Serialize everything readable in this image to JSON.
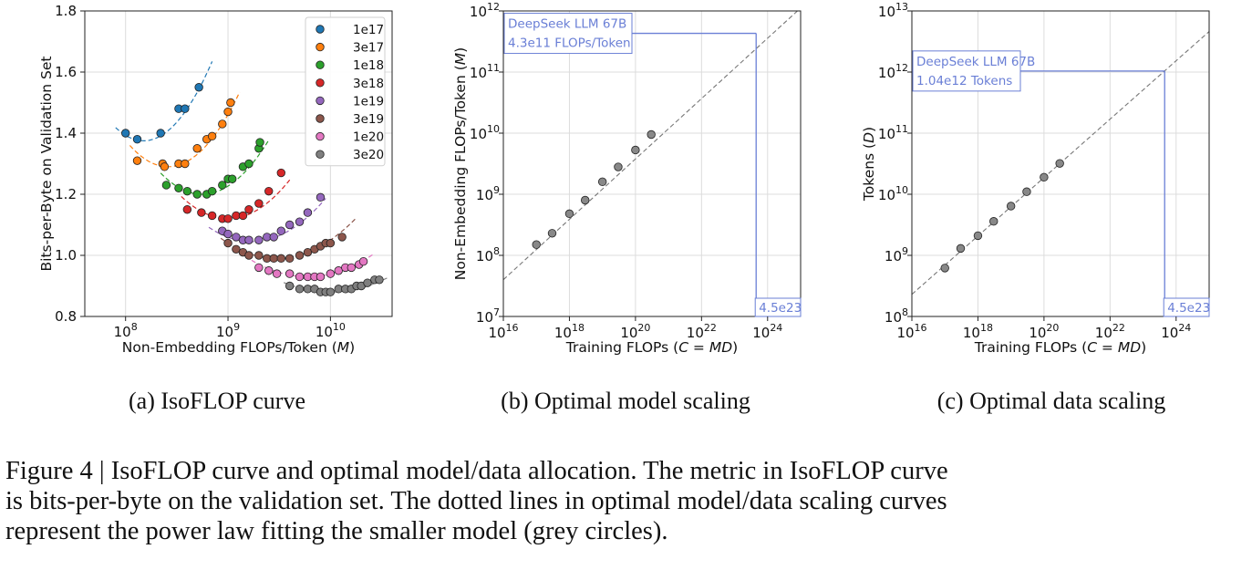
{
  "caption": {
    "lines": [
      "Figure 4 | IsoFLOP curve and optimal model/data allocation. The metric in IsoFLOP curve",
      "is bits-per-byte on the validation set. The dotted lines in optimal model/data scaling curves",
      "represent the power law fitting the smaller model (grey circles)."
    ]
  },
  "chart_data": [
    {
      "type": "scatter",
      "subcaption": "(a)  IsoFLOP curve",
      "xlabel": "Non-Embedding FLOPs/Token (M)",
      "ylabel": "Bits-per-Byte on Validation Set",
      "xscale": "log",
      "xlim": [
        40000000.0,
        40000000000.0
      ],
      "ylim": [
        0.8,
        1.8
      ],
      "x_ticks": [
        {
          "value": 100000000.0,
          "base": "10",
          "exp": "8"
        },
        {
          "value": 1000000000.0,
          "base": "10",
          "exp": "9"
        },
        {
          "value": 10000000000.0,
          "base": "10",
          "exp": "10"
        }
      ],
      "y_ticks": [
        {
          "value": 0.8,
          "label": "0.8"
        },
        {
          "value": 1.0,
          "label": "1.0"
        },
        {
          "value": 1.2,
          "label": "1.2"
        },
        {
          "value": 1.4,
          "label": "1.4"
        },
        {
          "value": 1.6,
          "label": "1.6"
        },
        {
          "value": 1.8,
          "label": "1.8"
        }
      ],
      "grid": true,
      "legend_position": "top-right",
      "series": [
        {
          "name": "1e17",
          "color": "#1f77b4",
          "x": [
            100000000.0,
            130000000.0,
            220000000.0,
            330000000.0,
            380000000.0,
            520000000.0
          ],
          "y": [
            1.4,
            1.38,
            1.4,
            1.48,
            1.48,
            1.55
          ],
          "fit": {
            "xmin": 80000000.0,
            "xmax": 700000000.0,
            "xmin_opt": 150000000.0,
            "ymin": 1.375,
            "k": 0.58
          }
        },
        {
          "name": "3e17",
          "color": "#ff7f0e",
          "x": [
            130000000.0,
            230000000.0,
            240000000.0,
            330000000.0,
            380000000.0,
            500000000.0,
            620000000.0,
            700000000.0,
            880000000.0,
            1000000000.0,
            1060000000.0
          ],
          "y": [
            1.31,
            1.3,
            1.29,
            1.3,
            1.3,
            1.35,
            1.38,
            1.39,
            1.43,
            1.47,
            1.5
          ],
          "fit": {
            "xmin": 110000000.0,
            "xmax": 1300000000.0,
            "xmin_opt": 260000000.0,
            "ymin": 1.29,
            "k": 0.5
          }
        },
        {
          "name": "1e18",
          "color": "#2ca02c",
          "x": [
            250000000.0,
            330000000.0,
            400000000.0,
            500000000.0,
            620000000.0,
            700000000.0,
            880000000.0,
            1000000000.0,
            1100000000.0,
            1400000000.0,
            1600000000.0,
            2000000000.0,
            2050000000.0
          ],
          "y": [
            1.23,
            1.22,
            1.21,
            1.2,
            1.2,
            1.21,
            1.23,
            1.25,
            1.25,
            1.29,
            1.3,
            1.35,
            1.37
          ],
          "fit": {
            "xmin": 220000000.0,
            "xmax": 2500000000.0,
            "xmin_opt": 560000000.0,
            "ymin": 1.2,
            "k": 0.42
          }
        },
        {
          "name": "3e18",
          "color": "#d62728",
          "x": [
            400000000.0,
            550000000.0,
            700000000.0,
            880000000.0,
            1000000000.0,
            1200000000.0,
            1400000000.0,
            1600000000.0,
            2000000000.0,
            2500000000.0,
            3300000000.0
          ],
          "y": [
            1.15,
            1.14,
            1.13,
            1.12,
            1.12,
            1.13,
            1.13,
            1.15,
            1.17,
            1.21,
            1.27
          ],
          "fit": {
            "xmin": 350000000.0,
            "xmax": 4000000000.0,
            "xmin_opt": 1000000000.0,
            "ymin": 1.12,
            "k": 0.35
          }
        },
        {
          "name": "1e19",
          "color": "#9467bd",
          "x": [
            880000000.0,
            1000000000.0,
            1200000000.0,
            1400000000.0,
            1600000000.0,
            2000000000.0,
            2400000000.0,
            2800000000.0,
            3300000000.0,
            4000000000.0,
            5000000000.0,
            6000000000.0,
            8000000000.0
          ],
          "y": [
            1.08,
            1.07,
            1.06,
            1.05,
            1.05,
            1.05,
            1.06,
            1.06,
            1.08,
            1.1,
            1.11,
            1.14,
            1.19
          ],
          "fit": {
            "xmin": 650000000.0,
            "xmax": 9000000000.0,
            "xmin_opt": 1700000000.0,
            "ymin": 1.045,
            "k": 0.27
          }
        },
        {
          "name": "3e19",
          "color": "#8c564b",
          "x": [
            1000000000.0,
            1200000000.0,
            1400000000.0,
            1600000000.0,
            2000000000.0,
            2400000000.0,
            2800000000.0,
            3300000000.0,
            4000000000.0,
            5000000000.0,
            6000000000.0,
            7000000000.0,
            8000000000.0,
            9000000000.0,
            10000000000.0,
            13000000000.0
          ],
          "y": [
            1.04,
            1.02,
            1.01,
            1.0,
            1.0,
            0.99,
            0.99,
            0.99,
            0.99,
            1.0,
            1.01,
            1.02,
            1.03,
            1.04,
            1.04,
            1.06
          ],
          "fit": {
            "xmin": 850000000.0,
            "xmax": 18000000000.0,
            "xmin_opt": 3000000000.0,
            "ymin": 0.99,
            "k": 0.22
          }
        },
        {
          "name": "1e20",
          "color": "#e377c2",
          "x": [
            2000000000.0,
            2500000000.0,
            3000000000.0,
            4000000000.0,
            5000000000.0,
            6000000000.0,
            7000000000.0,
            8000000000.0,
            10000000000.0,
            12000000000.0,
            14000000000.0,
            16000000000.0,
            19000000000.0,
            21000000000.0
          ],
          "y": [
            0.96,
            0.95,
            0.94,
            0.94,
            0.93,
            0.93,
            0.93,
            0.93,
            0.94,
            0.95,
            0.96,
            0.96,
            0.97,
            0.98
          ],
          "fit": {
            "xmin": 1700000000.0,
            "xmax": 26000000000.0,
            "xmin_opt": 6000000000.0,
            "ymin": 0.93,
            "k": 0.18
          }
        },
        {
          "name": "3e20",
          "color": "#7f7f7f",
          "x": [
            4000000000.0,
            5000000000.0,
            6000000000.0,
            7000000000.0,
            8000000000.0,
            9000000000.0,
            10000000000.0,
            12000000000.0,
            14000000000.0,
            16000000000.0,
            18000000000.0,
            20000000000.0,
            23000000000.0,
            27000000000.0,
            30000000000.0
          ],
          "y": [
            0.9,
            0.89,
            0.89,
            0.89,
            0.88,
            0.88,
            0.88,
            0.89,
            0.89,
            0.89,
            0.9,
            0.9,
            0.91,
            0.92,
            0.92
          ],
          "fit": {
            "xmin": 3500000000.0,
            "xmax": 36000000000.0,
            "xmin_opt": 10000000000.0,
            "ymin": 0.88,
            "k": 0.15
          }
        }
      ]
    },
    {
      "type": "scatter",
      "subcaption": "(b)  Optimal model scaling",
      "xlabel": "Training FLOPs (C = MD)",
      "ylabel": "Non-Embedding FLOPs/Token (M)",
      "xscale": "log",
      "yscale": "log",
      "xlim": [
        1e+16,
        1e+25
      ],
      "ylim": [
        10000000.0,
        1000000000000.0
      ],
      "x_ticks": [
        {
          "value": 1e+16,
          "base": "10",
          "exp": "16"
        },
        {
          "value": 1e+18,
          "base": "10",
          "exp": "18"
        },
        {
          "value": 1e+20,
          "base": "10",
          "exp": "20"
        },
        {
          "value": 1e+22,
          "base": "10",
          "exp": "22"
        },
        {
          "value": 1e+24,
          "base": "10",
          "exp": "24"
        }
      ],
      "y_ticks": [
        {
          "value": 10000000.0,
          "base": "10",
          "exp": "7"
        },
        {
          "value": 100000000.0,
          "base": "10",
          "exp": "8"
        },
        {
          "value": 1000000000.0,
          "base": "10",
          "exp": "9"
        },
        {
          "value": 10000000000.0,
          "base": "10",
          "exp": "10"
        },
        {
          "value": 100000000000.0,
          "base": "10",
          "exp": "11"
        },
        {
          "value": 1000000000000.0,
          "base": "10",
          "exp": "12"
        }
      ],
      "grid": true,
      "points": {
        "color": "#888888",
        "x": [
          1e+17,
          3e+17,
          1e+18,
          3e+18,
          1e+19,
          3e+19,
          1e+20,
          3e+20
        ],
        "y": [
          150000000.0,
          230000000.0,
          480000000.0,
          800000000.0,
          1600000000.0,
          2800000000.0,
          5300000000.0,
          9500000000.0
        ]
      },
      "fit": {
        "x0": 1e+16,
        "y0": 40000000.0,
        "x1": 8e+24,
        "y1": 1000000000000.0
      },
      "highlight": {
        "x": 4.5e+23,
        "y": 430000000000.0,
        "name": "DeepSeek LLM 67B",
        "value_label": "4.3e11 FLOPs/Token",
        "x_label": "4.5e23",
        "color": "#6a7fd6"
      }
    },
    {
      "type": "scatter",
      "subcaption": "(c)  Optimal data scaling",
      "xlabel": "Training FLOPs (C = MD)",
      "ylabel": "Tokens (D)",
      "xscale": "log",
      "yscale": "log",
      "xlim": [
        1e+16,
        1e+25
      ],
      "ylim": [
        100000000.0,
        10000000000000.0
      ],
      "x_ticks": [
        {
          "value": 1e+16,
          "base": "10",
          "exp": "16"
        },
        {
          "value": 1e+18,
          "base": "10",
          "exp": "18"
        },
        {
          "value": 1e+20,
          "base": "10",
          "exp": "20"
        },
        {
          "value": 1e+22,
          "base": "10",
          "exp": "22"
        },
        {
          "value": 1e+24,
          "base": "10",
          "exp": "24"
        }
      ],
      "y_ticks": [
        {
          "value": 100000000.0,
          "base": "10",
          "exp": "8"
        },
        {
          "value": 1000000000.0,
          "base": "10",
          "exp": "9"
        },
        {
          "value": 10000000000.0,
          "base": "10",
          "exp": "10"
        },
        {
          "value": 100000000000.0,
          "base": "10",
          "exp": "11"
        },
        {
          "value": 1000000000000.0,
          "base": "10",
          "exp": "12"
        },
        {
          "value": 10000000000000.0,
          "base": "10",
          "exp": "13"
        }
      ],
      "grid": true,
      "points": {
        "color": "#888888",
        "x": [
          1e+17,
          3e+17,
          1e+18,
          3e+18,
          1e+19,
          3e+19,
          1e+20,
          3e+20
        ],
        "y": [
          620000000.0,
          1300000000.0,
          2100000000.0,
          3600000000.0,
          6400000000.0,
          11000000000.0,
          19000000000.0,
          32000000000.0
        ]
      },
      "fit": {
        "x0": 1e+16,
        "y0": 230000000.0,
        "x1": 1e+25,
        "y1": 4600000000000.0
      },
      "highlight": {
        "x": 4.5e+23,
        "y": 1040000000000.0,
        "name": "DeepSeek LLM 67B",
        "value_label": "1.04e12 Tokens",
        "x_label": "4.5e23",
        "color": "#6a7fd6"
      }
    }
  ]
}
